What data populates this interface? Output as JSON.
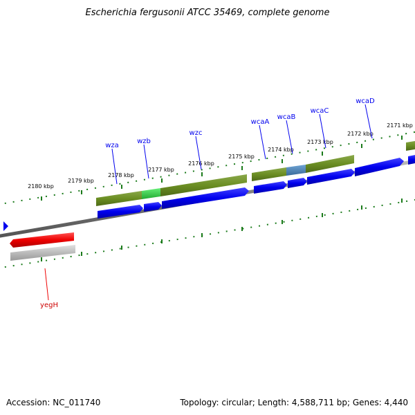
{
  "title": "Escherichia fergusonii ATCC 35469, complete genome",
  "footer": {
    "accession": "Accession: NC_011740",
    "summary": "Topology: circular; Length: 4,588,711 bp; Genes: 4,440"
  },
  "tick_labels": [
    "2180 kbp",
    "2179 kbp",
    "2178 kbp",
    "2177 kbp",
    "2176 kbp",
    "2175 kbp",
    "2174 kbp",
    "2173 kbp",
    "2172 kbp",
    "2171 kbp"
  ],
  "gene_labels": [
    {
      "name": "wza",
      "strand": "forward"
    },
    {
      "name": "wzb",
      "strand": "forward"
    },
    {
      "name": "wzc",
      "strand": "forward"
    },
    {
      "name": "wcaA",
      "strand": "forward"
    },
    {
      "name": "wcaB",
      "strand": "forward"
    },
    {
      "name": "wcaC",
      "strand": "forward"
    },
    {
      "name": "wcaD",
      "strand": "forward"
    },
    {
      "name": "yegH",
      "strand": "reverse"
    }
  ],
  "colors": {
    "forward_gene": "#0000ee",
    "reverse_gene": "#ee0000",
    "cog_olive": "#6b8e23",
    "cog_green": "#33cc44",
    "cog_steel": "#4682b4",
    "backbone": "#888888",
    "tick": "#1a7a1a"
  }
}
